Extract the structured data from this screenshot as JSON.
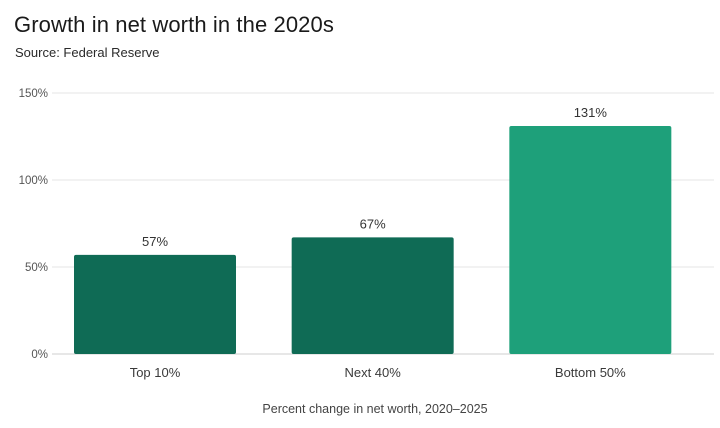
{
  "header": {
    "title": "Growth in net worth in the 2020s",
    "subtitle": "Source: Federal Reserve"
  },
  "chart_data": {
    "type": "bar",
    "title": "Growth in net worth in the 2020s",
    "subtitle": "Source: Federal Reserve",
    "categories": [
      "Top 10%",
      "Next 40%",
      "Bottom 50%"
    ],
    "values": [
      57,
      67,
      131
    ],
    "value_labels": [
      "57%",
      "67%",
      "131%"
    ],
    "bar_colors": [
      "#0f6b55",
      "#0f6b55",
      "#1ea07a"
    ],
    "ylim": [
      0,
      150
    ],
    "yticks": [
      0,
      50,
      100,
      150
    ],
    "ytick_labels": [
      "0%",
      "50%",
      "100%",
      "150%"
    ],
    "xlabel": "Percent change in net worth, 2020–2025",
    "ylabel": "",
    "grid": true,
    "legend": "none"
  }
}
